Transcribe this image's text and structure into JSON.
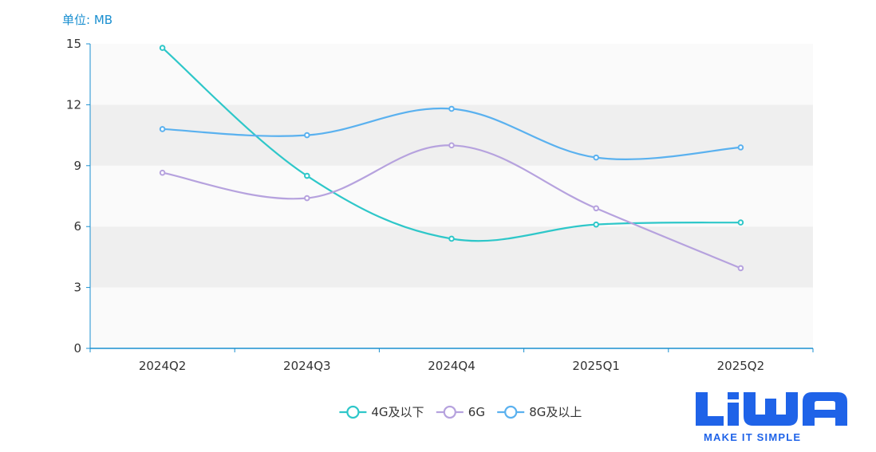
{
  "unit_label": "单位: MB",
  "logo": {
    "wordmark": "LiWA",
    "tagline": "MAKE IT SIMPLE",
    "color": "#1f63e8"
  },
  "chart_data": {
    "type": "line",
    "smooth": true,
    "categories": [
      "2024Q2",
      "2024Q3",
      "2024Q4",
      "2025Q1",
      "2025Q2"
    ],
    "ylim": [
      0,
      15
    ],
    "yticks": [
      0,
      3,
      6,
      9,
      12,
      15
    ],
    "series": [
      {
        "name": "4G及以下",
        "color": "#2ec7c9",
        "values": [
          14.8,
          8.5,
          5.4,
          6.1,
          6.2
        ]
      },
      {
        "name": "6G",
        "color": "#b6a2de",
        "values": [
          8.65,
          7.4,
          10.0,
          6.9,
          3.95
        ]
      },
      {
        "name": "8G及以上",
        "color": "#5ab1ef",
        "values": [
          10.8,
          10.5,
          11.8,
          9.4,
          9.9
        ]
      }
    ],
    "grid_bands": true,
    "legend_position": "bottom"
  }
}
